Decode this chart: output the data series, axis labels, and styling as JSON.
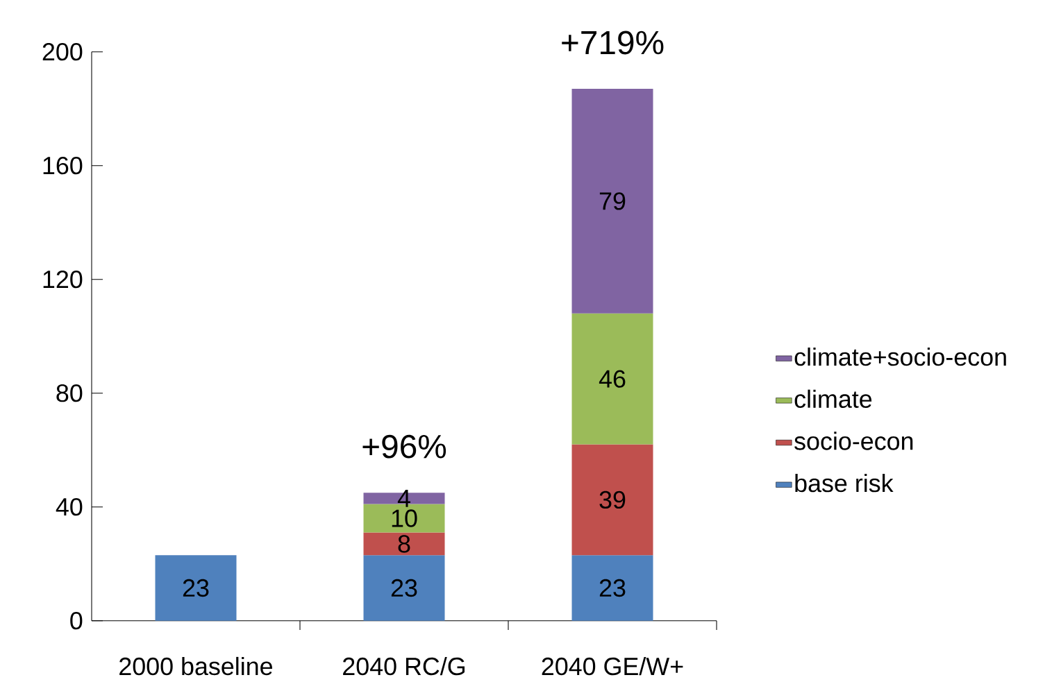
{
  "chart_data": {
    "type": "bar",
    "stacked": true,
    "categories": [
      "2000 baseline",
      "2040 RC/G",
      "2040 GE/W+"
    ],
    "series": [
      {
        "name": "base risk",
        "color": "#4f81bd",
        "values": [
          23,
          23,
          23
        ]
      },
      {
        "name": "socio-econ",
        "color": "#c0504d",
        "values": [
          null,
          8,
          39
        ]
      },
      {
        "name": "climate",
        "color": "#9bbb59",
        "values": [
          null,
          10,
          46
        ]
      },
      {
        "name": "climate+socio-econ",
        "color": "#8064a2",
        "values": [
          null,
          4,
          79
        ]
      }
    ],
    "ylim": [
      0,
      200
    ],
    "yticks": [
      0,
      40,
      80,
      120,
      160,
      200
    ],
    "data_labels": true,
    "grid": false,
    "legend": "right",
    "annotations": [
      "+96%",
      "+719%"
    ]
  }
}
